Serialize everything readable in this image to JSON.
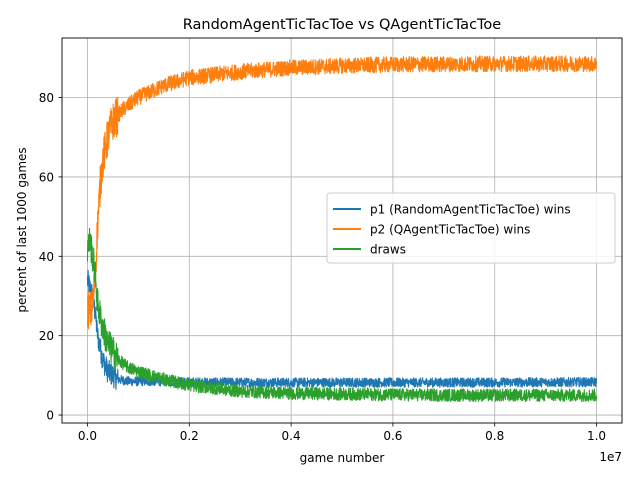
{
  "chart_data": {
    "type": "line",
    "title": "RandomAgentTicTacToe vs QAgentTicTacToe",
    "xlabel": "game number",
    "ylabel": "percent of last 1000 games",
    "x_offset_label": "1e7",
    "x_scale": 10000000,
    "xlim": [
      -0.05,
      1.05
    ],
    "ylim": [
      -2,
      95
    ],
    "x_ticks": [
      0.0,
      0.2,
      0.4,
      0.6,
      0.8,
      1.0
    ],
    "x_tick_labels": [
      "0.0",
      "0.2",
      "0.4",
      "0.6",
      "0.8",
      "1.0"
    ],
    "y_ticks": [
      0,
      20,
      40,
      60,
      80
    ],
    "y_tick_labels": [
      "0",
      "20",
      "40",
      "60",
      "80"
    ],
    "grid": true,
    "legend_position": "center-right",
    "series": [
      {
        "name": "p1 (RandomAgentTicTacToe) wins",
        "color": "#1f77b4",
        "noise": 1.2,
        "points": [
          [
            0.0,
            34
          ],
          [
            0.005,
            32
          ],
          [
            0.01,
            30
          ],
          [
            0.015,
            26
          ],
          [
            0.02,
            20
          ],
          [
            0.03,
            14
          ],
          [
            0.04,
            11
          ],
          [
            0.06,
            9
          ],
          [
            0.08,
            8.5
          ],
          [
            0.1,
            8.5
          ],
          [
            0.12,
            8.5
          ],
          [
            0.15,
            8.5
          ],
          [
            0.2,
            8.3
          ],
          [
            0.3,
            8.2
          ],
          [
            0.5,
            8.2
          ],
          [
            0.7,
            8.2
          ],
          [
            1.0,
            8.3
          ]
        ]
      },
      {
        "name": "p2 (QAgentTicTacToe) wins",
        "color": "#ff7f0e",
        "noise": 2.0,
        "points": [
          [
            0.0,
            27
          ],
          [
            0.005,
            26
          ],
          [
            0.01,
            27
          ],
          [
            0.015,
            35
          ],
          [
            0.02,
            48
          ],
          [
            0.025,
            58
          ],
          [
            0.03,
            64
          ],
          [
            0.04,
            70
          ],
          [
            0.05,
            74
          ],
          [
            0.07,
            77
          ],
          [
            0.1,
            80
          ],
          [
            0.15,
            83
          ],
          [
            0.2,
            85
          ],
          [
            0.3,
            86.5
          ],
          [
            0.4,
            87.5
          ],
          [
            0.5,
            88
          ],
          [
            0.6,
            88.3
          ],
          [
            0.8,
            88.5
          ],
          [
            1.0,
            88.5
          ]
        ]
      },
      {
        "name": "draws",
        "color": "#2ca02c",
        "noise": 1.6,
        "points": [
          [
            0.0,
            42
          ],
          [
            0.005,
            44
          ],
          [
            0.01,
            40
          ],
          [
            0.015,
            36
          ],
          [
            0.02,
            28
          ],
          [
            0.03,
            22
          ],
          [
            0.04,
            18
          ],
          [
            0.06,
            14
          ],
          [
            0.08,
            12
          ],
          [
            0.1,
            11
          ],
          [
            0.15,
            9
          ],
          [
            0.2,
            7.5
          ],
          [
            0.3,
            6
          ],
          [
            0.4,
            5.5
          ],
          [
            0.5,
            5.3
          ],
          [
            0.7,
            5
          ],
          [
            1.0,
            5
          ]
        ]
      }
    ]
  }
}
